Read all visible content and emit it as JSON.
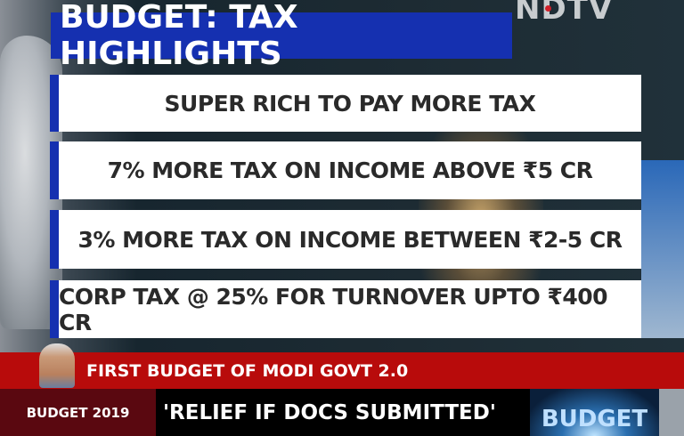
{
  "channel_logo": "NDTV",
  "title": "BUDGET: TAX HIGHLIGHTS",
  "highlights": [
    "SUPER RICH TO PAY MORE TAX",
    "7% MORE TAX ON INCOME ABOVE ₹5 CR",
    "3% MORE TAX ON INCOME BETWEEN ₹2-5 CR",
    "CORP TAX @ 25% FOR TURNOVER UPTO ₹400 CR"
  ],
  "headline": "FIRST BUDGET OF MODI GOVT 2.0",
  "ticker": {
    "tag": "BUDGET 2019",
    "text": "'RELIEF IF DOCS SUBMITTED'"
  },
  "promo": "BUDGET",
  "colors": {
    "title_bg": "#1530b0",
    "headline_bg": "#b80b0b",
    "tag_bg": "#5a0810"
  }
}
